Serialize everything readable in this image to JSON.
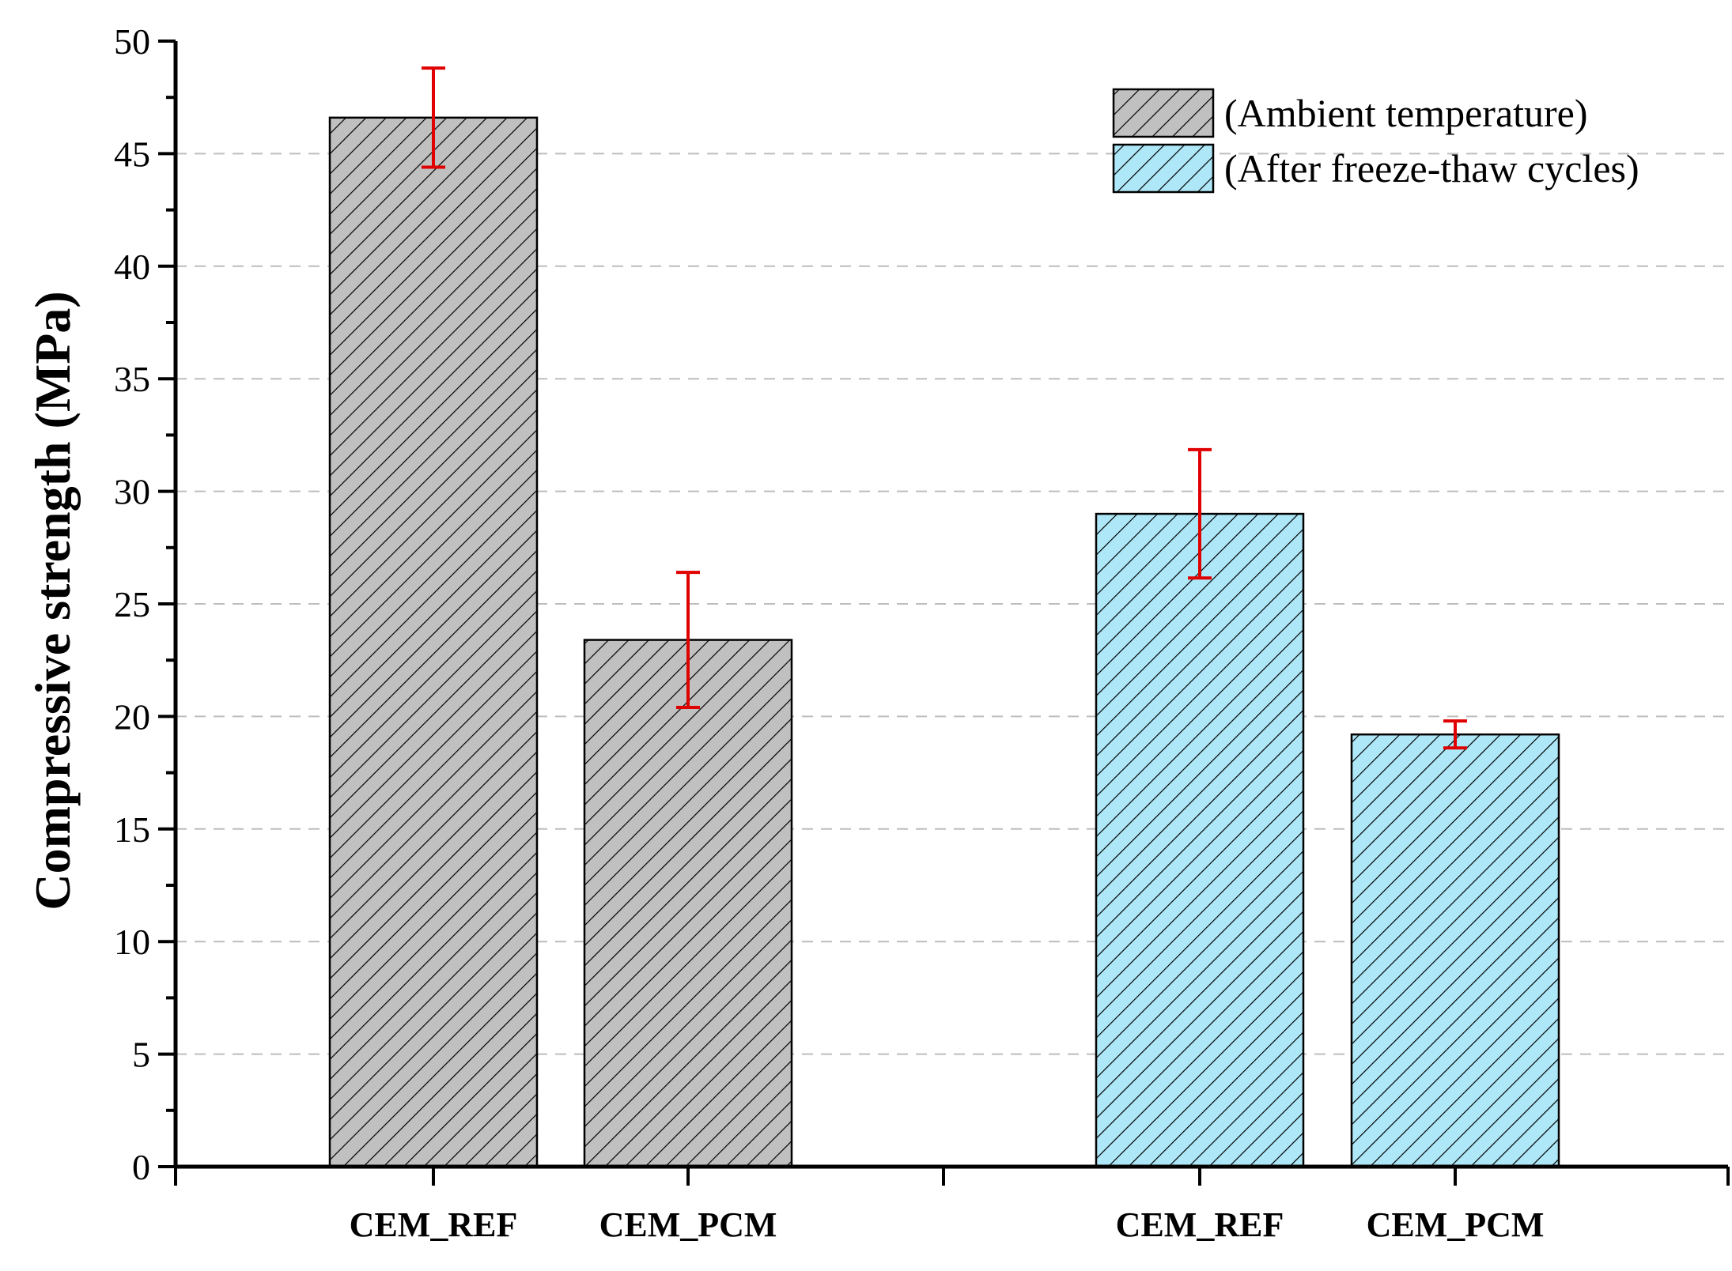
{
  "chart_data": {
    "type": "bar",
    "title": "",
    "xlabel": "",
    "ylabel": "Compressive strength (MPa)",
    "ylim": [
      0,
      50
    ],
    "yticks": [
      0,
      5,
      10,
      15,
      20,
      25,
      30,
      35,
      40,
      45,
      50
    ],
    "grid": true,
    "legend_position": "top-right",
    "colors": {
      "ambient": "#c0c0c0",
      "freeze": "#aee8f8",
      "error": "#e00000"
    },
    "groups": [
      {
        "name": "(Ambient temperature)",
        "color": "#c0c0c0",
        "bars": [
          {
            "category": "CEM_REF",
            "value": 46.6,
            "error": 2.2
          },
          {
            "category": "CEM_PCM",
            "value": 23.4,
            "error": 3.0
          }
        ]
      },
      {
        "name": "(After freeze-thaw cycles)",
        "color": "#aee8f8",
        "bars": [
          {
            "category": "CEM_REF",
            "value": 29.0,
            "error": 2.85
          },
          {
            "category": "CEM_PCM",
            "value": 19.2,
            "error": 0.6
          }
        ]
      }
    ]
  }
}
